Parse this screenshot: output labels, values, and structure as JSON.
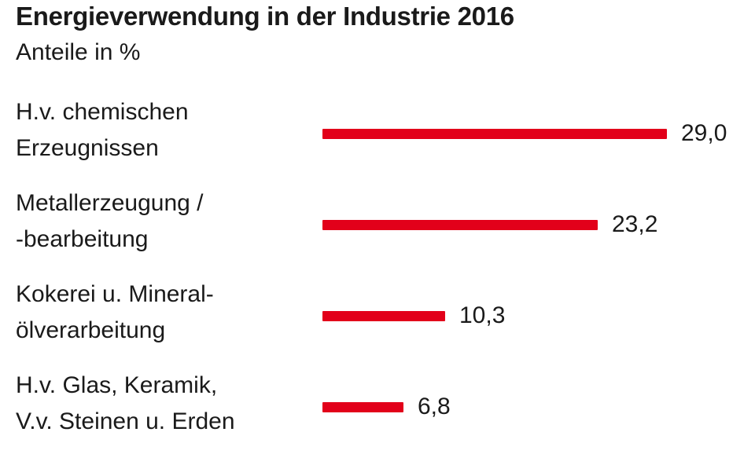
{
  "chart_data": {
    "type": "bar",
    "orientation": "horizontal",
    "title": "Energieverwendung in der Industrie 2016",
    "subtitle": "Anteile in %",
    "categories": [
      [
        "H.v. chemischen",
        "Erzeugnissen"
      ],
      [
        "Metallerzeugung /",
        "-bearbeitung"
      ],
      [
        "Kokerei u. Mineral-",
        "ölverarbeitung"
      ],
      [
        "H.v. Glas, Keramik,",
        "V.v. Steinen u. Erden"
      ]
    ],
    "values": [
      29.0,
      23.2,
      10.3,
      6.8
    ],
    "value_labels": [
      "29,0",
      "23,2",
      "10,3",
      "6,8"
    ],
    "bar_color": "#e2001a",
    "xlim": [
      0,
      29.0
    ],
    "grid": false
  }
}
